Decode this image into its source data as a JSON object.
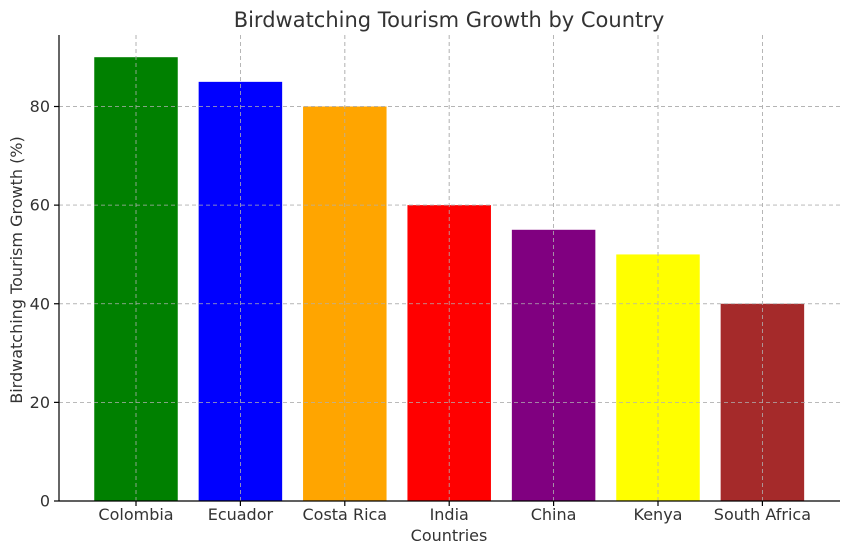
{
  "chart_data": {
    "type": "bar",
    "title": "Birdwatching Tourism Growth by Country",
    "xlabel": "Countries",
    "ylabel": "Birdwatching Tourism Growth (%)",
    "categories": [
      "Colombia",
      "Ecuador",
      "Costa Rica",
      "India",
      "China",
      "Kenya",
      "South Africa"
    ],
    "values": [
      90,
      85,
      80,
      60,
      55,
      50,
      40
    ],
    "colors": [
      "#008000",
      "#0000ff",
      "#ffa500",
      "#ff0000",
      "#800080",
      "#ffff00",
      "#a52a2a"
    ],
    "ylim": [
      0,
      94.5
    ],
    "yticks": [
      0,
      20,
      40,
      60,
      80
    ],
    "grid": true
  }
}
